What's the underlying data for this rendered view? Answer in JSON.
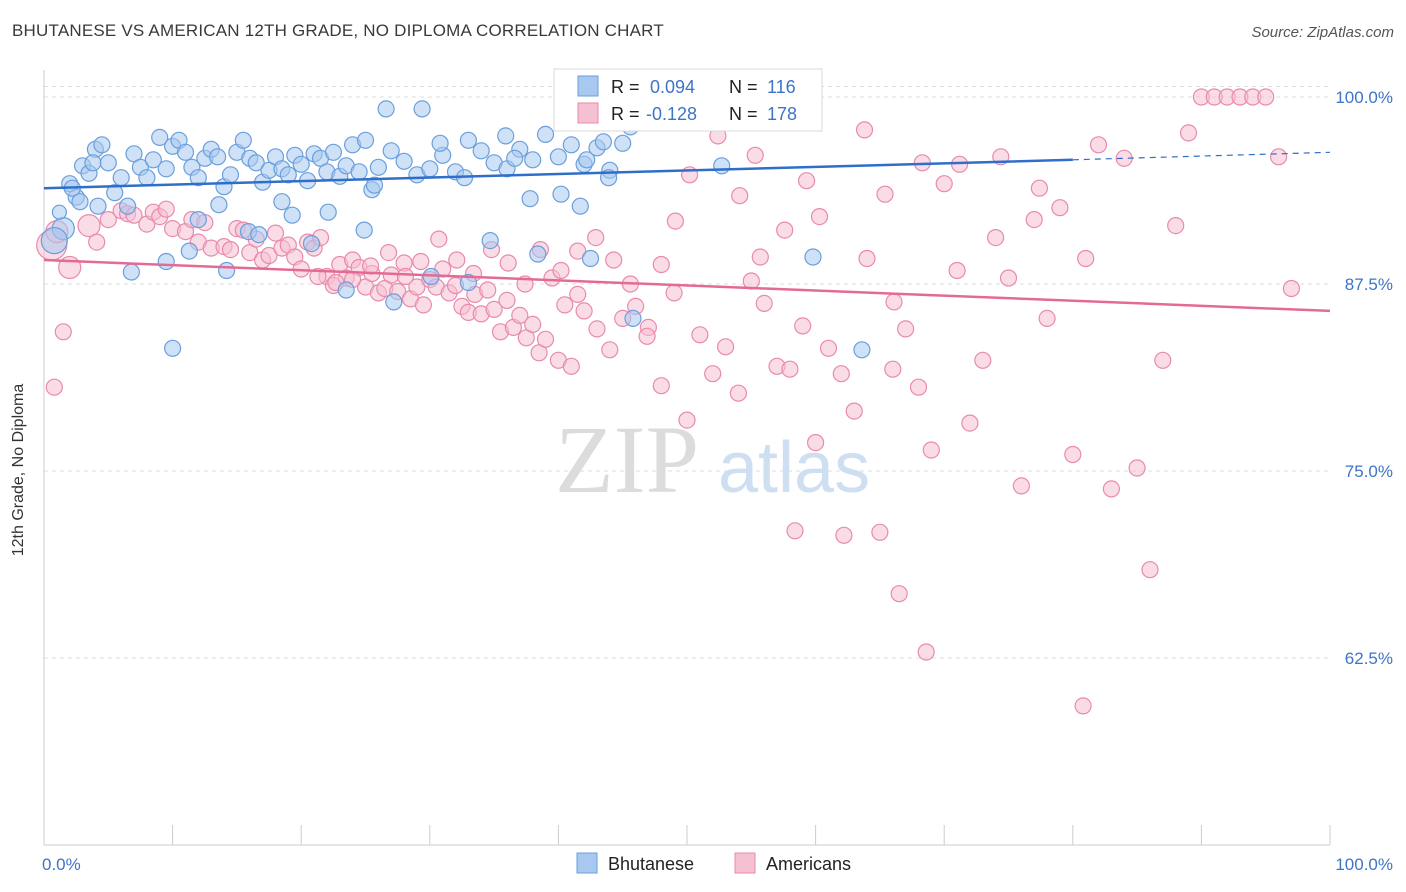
{
  "title": "BHUTANESE VS AMERICAN 12TH GRADE, NO DIPLOMA CORRELATION CHART",
  "source": "Source: ZipAtlas.com",
  "watermark": {
    "zip": "ZIP",
    "atlas": "atlas"
  },
  "colors": {
    "blue_fill": "#a8c8f0",
    "blue_stroke": "#6a9fdc",
    "blue_line": "#2f6fc9",
    "pink_fill": "#f5c0d2",
    "pink_stroke": "#e98aac",
    "pink_line": "#e46a96",
    "tick_label": "#3e74c9",
    "grid": "#dddddd"
  },
  "legend": {
    "rows": [
      {
        "r_label": "R = ",
        "r_value": "0.094",
        "n_label": "N = ",
        "n_value": "116"
      },
      {
        "r_label": "R = ",
        "r_value": "-0.128",
        "n_label": "N = ",
        "n_value": "178"
      }
    ],
    "bottom": [
      "Bhutanese",
      "Americans"
    ]
  },
  "chart_data": {
    "type": "scatter",
    "title": "BHUTANESE VS AMERICAN 12TH GRADE, NO DIPLOMA CORRELATION CHART",
    "xlabel": "",
    "ylabel": "12th Grade, No Diploma",
    "xlim": [
      0,
      100
    ],
    "ylim": [
      50,
      101
    ],
    "x_tick_labels": [
      "0.0%",
      "100.0%"
    ],
    "y_ticks": [
      62.5,
      75.0,
      87.5,
      100.0
    ],
    "y_tick_labels": [
      "62.5%",
      "75.0%",
      "87.5%",
      "100.0%"
    ],
    "grid": true,
    "series": [
      {
        "name": "Bhutanese",
        "r": 0.094,
        "n": 116,
        "trend": {
          "x": [
            0,
            80
          ],
          "y": [
            93.9,
            95.8
          ],
          "dashed_to": [
            100,
            96.3
          ]
        },
        "points": [
          [
            1.5,
            91.2
          ],
          [
            1.2,
            92.3
          ],
          [
            0.8,
            90.4
          ],
          [
            2.5,
            93.3
          ],
          [
            3.0,
            95.4
          ],
          [
            3.5,
            94.9
          ],
          [
            4.0,
            96.5
          ],
          [
            3.8,
            95.6
          ],
          [
            4.5,
            96.8
          ],
          [
            5.0,
            95.6
          ],
          [
            5.5,
            93.6
          ],
          [
            6.0,
            94.6
          ],
          [
            2.0,
            94.2
          ],
          [
            2.2,
            93.9
          ],
          [
            2.8,
            93.0
          ],
          [
            4.2,
            92.7
          ],
          [
            6.5,
            92.7
          ],
          [
            7.0,
            96.2
          ],
          [
            7.5,
            95.3
          ],
          [
            8.0,
            94.6
          ],
          [
            8.5,
            95.8
          ],
          [
            9.0,
            97.3
          ],
          [
            9.5,
            95.2
          ],
          [
            10.0,
            96.7
          ],
          [
            10.5,
            97.1
          ],
          [
            11.0,
            96.3
          ],
          [
            11.5,
            95.3
          ],
          [
            12.0,
            94.6
          ],
          [
            12.5,
            95.9
          ],
          [
            13.0,
            96.5
          ],
          [
            13.5,
            96.0
          ],
          [
            14.0,
            94.0
          ],
          [
            14.5,
            94.8
          ],
          [
            15.0,
            96.3
          ],
          [
            15.5,
            97.1
          ],
          [
            16.0,
            95.9
          ],
          [
            16.5,
            95.6
          ],
          [
            17.0,
            94.3
          ],
          [
            17.5,
            95.1
          ],
          [
            18.0,
            96.0
          ],
          [
            18.5,
            95.2
          ],
          [
            19.0,
            94.8
          ],
          [
            19.5,
            96.1
          ],
          [
            20.0,
            95.5
          ],
          [
            20.5,
            94.4
          ],
          [
            21.0,
            96.2
          ],
          [
            21.5,
            95.9
          ],
          [
            22.0,
            95.0
          ],
          [
            22.5,
            96.3
          ],
          [
            23.0,
            94.7
          ],
          [
            23.5,
            95.4
          ],
          [
            24.0,
            96.8
          ],
          [
            24.5,
            95.0
          ],
          [
            25.0,
            97.1
          ],
          [
            25.5,
            93.8
          ],
          [
            26.0,
            95.3
          ],
          [
            27.0,
            96.4
          ],
          [
            28.0,
            95.7
          ],
          [
            29.0,
            94.8
          ],
          [
            30.0,
            95.2
          ],
          [
            31.0,
            96.1
          ],
          [
            32.0,
            95.0
          ],
          [
            33.0,
            97.1
          ],
          [
            34.0,
            96.4
          ],
          [
            35.0,
            95.6
          ],
          [
            36.0,
            95.2
          ],
          [
            37.0,
            96.5
          ],
          [
            38.0,
            95.8
          ],
          [
            39.0,
            97.5
          ],
          [
            40.0,
            96.0
          ],
          [
            41.0,
            96.8
          ],
          [
            42.0,
            95.5
          ],
          [
            43.0,
            96.6
          ],
          [
            44.0,
            95.1
          ],
          [
            45.0,
            96.9
          ],
          [
            6.8,
            88.3
          ],
          [
            9.5,
            89.0
          ],
          [
            14.2,
            88.4
          ],
          [
            10.0,
            83.2
          ],
          [
            23.5,
            87.1
          ],
          [
            27.2,
            86.3
          ],
          [
            33.0,
            87.6
          ],
          [
            30.1,
            88.0
          ],
          [
            38.4,
            89.5
          ],
          [
            42.5,
            89.2
          ],
          [
            34.7,
            90.4
          ],
          [
            43.9,
            94.6
          ],
          [
            45.8,
            85.2
          ],
          [
            52.7,
            95.4
          ],
          [
            59.8,
            89.3
          ],
          [
            63.6,
            83.1
          ],
          [
            18.5,
            93.0
          ],
          [
            20.8,
            90.2
          ],
          [
            22.1,
            92.3
          ],
          [
            24.9,
            91.1
          ],
          [
            15.9,
            91.0
          ],
          [
            12.0,
            91.8
          ],
          [
            11.3,
            89.7
          ],
          [
            13.6,
            92.8
          ],
          [
            16.7,
            90.8
          ],
          [
            19.3,
            92.1
          ],
          [
            25.7,
            94.1
          ],
          [
            26.6,
            99.2
          ],
          [
            29.4,
            99.2
          ],
          [
            30.8,
            96.9
          ],
          [
            32.7,
            94.6
          ],
          [
            35.9,
            97.4
          ],
          [
            37.8,
            93.2
          ],
          [
            40.2,
            93.5
          ],
          [
            41.7,
            92.7
          ],
          [
            42.2,
            95.8
          ],
          [
            43.5,
            97.0
          ],
          [
            45.6,
            98.0
          ],
          [
            46.5,
            98.9
          ],
          [
            44.9,
            98.6
          ],
          [
            36.6,
            95.9
          ],
          [
            47.2,
            99.0
          ]
        ],
        "sizes": {
          "0": 22,
          "1": 14,
          "2": 26
        }
      },
      {
        "name": "Americans",
        "r": -0.128,
        "n": 178,
        "trend": {
          "x": [
            0,
            100
          ],
          "y": [
            89.1,
            85.7
          ]
        },
        "points": [
          [
            0.6,
            90.1
          ],
          [
            1.0,
            91.0
          ],
          [
            2.0,
            88.6
          ],
          [
            1.5,
            84.3
          ],
          [
            0.8,
            80.6
          ],
          [
            3.5,
            91.4
          ],
          [
            4.1,
            90.3
          ],
          [
            5.0,
            91.8
          ],
          [
            6.0,
            92.4
          ],
          [
            6.5,
            92.2
          ],
          [
            7.0,
            92.1
          ],
          [
            8.0,
            91.5
          ],
          [
            8.5,
            92.3
          ],
          [
            9.0,
            92.0
          ],
          [
            9.5,
            92.5
          ],
          [
            10.0,
            91.2
          ],
          [
            11.0,
            91.0
          ],
          [
            11.5,
            91.8
          ],
          [
            12.0,
            90.3
          ],
          [
            12.5,
            91.6
          ],
          [
            13.0,
            89.9
          ],
          [
            14.0,
            90.0
          ],
          [
            14.5,
            89.8
          ],
          [
            15.0,
            91.2
          ],
          [
            15.5,
            91.1
          ],
          [
            16.0,
            89.6
          ],
          [
            16.5,
            90.5
          ],
          [
            17.0,
            89.1
          ],
          [
            17.5,
            89.4
          ],
          [
            18.0,
            90.9
          ],
          [
            18.5,
            89.9
          ],
          [
            19.0,
            90.1
          ],
          [
            19.5,
            89.3
          ],
          [
            20.0,
            88.5
          ],
          [
            20.5,
            90.3
          ],
          [
            21.0,
            89.9
          ],
          [
            21.5,
            90.6
          ],
          [
            22.0,
            88.0
          ],
          [
            22.5,
            87.4
          ],
          [
            23.0,
            88.8
          ],
          [
            23.5,
            87.9
          ],
          [
            24.0,
            89.1
          ],
          [
            24.5,
            88.6
          ],
          [
            25.0,
            87.3
          ],
          [
            25.5,
            88.2
          ],
          [
            26.0,
            86.9
          ],
          [
            26.5,
            87.2
          ],
          [
            27.0,
            88.1
          ],
          [
            27.5,
            87.0
          ],
          [
            28.0,
            88.9
          ],
          [
            28.5,
            86.5
          ],
          [
            29.0,
            87.3
          ],
          [
            29.5,
            86.1
          ],
          [
            30.0,
            87.8
          ],
          [
            30.5,
            87.3
          ],
          [
            31.0,
            88.5
          ],
          [
            31.5,
            86.9
          ],
          [
            32.0,
            87.4
          ],
          [
            32.5,
            86.0
          ],
          [
            33.0,
            85.6
          ],
          [
            33.5,
            86.8
          ],
          [
            34.0,
            85.5
          ],
          [
            34.5,
            87.1
          ],
          [
            35.0,
            85.8
          ],
          [
            35.5,
            84.3
          ],
          [
            36.0,
            86.4
          ],
          [
            36.5,
            84.6
          ],
          [
            37.0,
            85.4
          ],
          [
            37.5,
            83.9
          ],
          [
            38.0,
            84.8
          ],
          [
            38.5,
            82.9
          ],
          [
            39.0,
            83.8
          ],
          [
            39.5,
            87.9
          ],
          [
            40.0,
            82.4
          ],
          [
            40.5,
            86.1
          ],
          [
            41.0,
            82.0
          ],
          [
            41.5,
            86.8
          ],
          [
            42.0,
            85.7
          ],
          [
            43.0,
            84.5
          ],
          [
            44.0,
            83.1
          ],
          [
            45.0,
            85.2
          ],
          [
            46.0,
            86.0
          ],
          [
            47.0,
            84.6
          ],
          [
            48.0,
            80.7
          ],
          [
            49.0,
            86.9
          ],
          [
            50.0,
            78.4
          ],
          [
            51.0,
            84.1
          ],
          [
            52.0,
            81.5
          ],
          [
            53.0,
            83.3
          ],
          [
            54.0,
            80.2
          ],
          [
            55.0,
            87.7
          ],
          [
            56.0,
            86.2
          ],
          [
            57.0,
            82.0
          ],
          [
            58.0,
            81.8
          ],
          [
            59.0,
            84.7
          ],
          [
            60.0,
            76.9
          ],
          [
            61.0,
            83.2
          ],
          [
            62.0,
            81.5
          ],
          [
            63.0,
            79.0
          ],
          [
            64.0,
            89.2
          ],
          [
            65.0,
            70.9
          ],
          [
            66.0,
            81.8
          ],
          [
            67.0,
            84.5
          ],
          [
            68.0,
            80.6
          ],
          [
            69.0,
            76.4
          ],
          [
            70.0,
            94.2
          ],
          [
            71.0,
            88.4
          ],
          [
            72.0,
            78.2
          ],
          [
            73.0,
            82.4
          ],
          [
            74.0,
            90.6
          ],
          [
            75.0,
            87.9
          ],
          [
            76.0,
            74.0
          ],
          [
            77.0,
            91.8
          ],
          [
            78.0,
            85.2
          ],
          [
            79.0,
            92.6
          ],
          [
            80.0,
            76.1
          ],
          [
            81.0,
            89.2
          ],
          [
            82.0,
            96.8
          ],
          [
            83.0,
            73.8
          ],
          [
            84.0,
            95.9
          ],
          [
            85.0,
            75.2
          ],
          [
            86.0,
            68.4
          ],
          [
            87.0,
            82.4
          ],
          [
            88.0,
            91.4
          ],
          [
            89.0,
            97.6
          ],
          [
            90.0,
            100.0
          ],
          [
            91.0,
            100.0
          ],
          [
            92.0,
            100.0
          ],
          [
            93.0,
            100.0
          ],
          [
            94.0,
            100.0
          ],
          [
            95.0,
            100.0
          ],
          [
            96.0,
            96.0
          ],
          [
            97.0,
            87.2
          ],
          [
            66.5,
            66.8
          ],
          [
            68.6,
            62.9
          ],
          [
            80.8,
            59.3
          ],
          [
            62.2,
            70.7
          ],
          [
            58.4,
            71.0
          ],
          [
            65.4,
            93.5
          ],
          [
            66.1,
            86.3
          ],
          [
            60.3,
            92.0
          ],
          [
            55.7,
            89.3
          ],
          [
            55.3,
            96.1
          ],
          [
            63.8,
            97.8
          ],
          [
            68.3,
            95.6
          ],
          [
            71.2,
            95.5
          ],
          [
            74.4,
            96.0
          ],
          [
            77.4,
            93.9
          ],
          [
            59.3,
            94.4
          ],
          [
            54.1,
            93.4
          ],
          [
            57.6,
            91.1
          ],
          [
            52.4,
            97.4
          ],
          [
            50.2,
            94.8
          ],
          [
            49.1,
            91.7
          ],
          [
            48.0,
            88.8
          ],
          [
            46.9,
            84.0
          ],
          [
            45.6,
            87.5
          ],
          [
            44.3,
            89.1
          ],
          [
            42.9,
            90.6
          ],
          [
            41.5,
            89.7
          ],
          [
            40.2,
            88.4
          ],
          [
            38.6,
            89.8
          ],
          [
            37.4,
            87.5
          ],
          [
            36.1,
            88.9
          ],
          [
            34.8,
            89.8
          ],
          [
            33.4,
            88.2
          ],
          [
            32.1,
            89.1
          ],
          [
            30.7,
            90.5
          ],
          [
            29.3,
            89.0
          ],
          [
            28.1,
            88.0
          ],
          [
            26.8,
            89.6
          ],
          [
            25.4,
            88.7
          ],
          [
            24.0,
            87.8
          ],
          [
            22.7,
            87.6
          ],
          [
            21.3,
            88.0
          ]
        ],
        "sizes": {
          "0": 30,
          "1": 22,
          "2": 22,
          "5": 22
        }
      }
    ]
  }
}
